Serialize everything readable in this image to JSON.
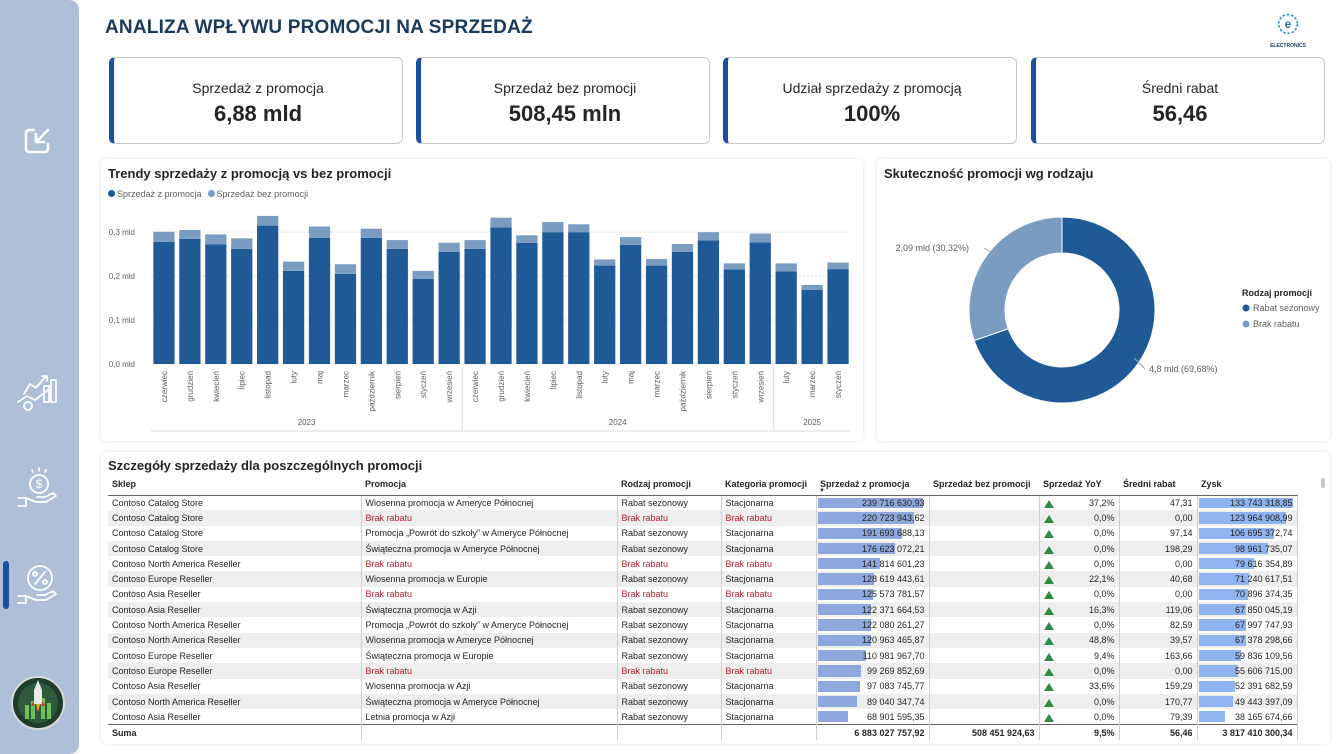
{
  "nav": {
    "items": [
      {
        "name": "export-icon"
      },
      {
        "name": "sales-growth-icon"
      },
      {
        "name": "money-hand-icon"
      },
      {
        "name": "percent-hand-icon"
      }
    ],
    "badge": "rocket-badge-logo"
  },
  "header": {
    "title": "ANALIZA WPŁYWU PROMOCJI NA SPRZEDAŻ",
    "brand": "ELECTRONICS"
  },
  "kpis": [
    {
      "label": "Sprzedaż z promocja",
      "value": "6,88 mld"
    },
    {
      "label": "Sprzedaż bez promocji",
      "value": "508,45 mln"
    },
    {
      "label": "Udział sprzedaży z promocją",
      "value": "100%"
    },
    {
      "label": "Średni rabat",
      "value": "56,46"
    }
  ],
  "colors": {
    "primary": "#1f5a96",
    "secondary": "#7b9cc1",
    "accent": "#1d4fa0"
  },
  "trend": {
    "title": "Trendy sprzedaży z promocją vs bez promocji",
    "legend": [
      "Sprzedaż z promocja",
      "Sprzedaż bez promocji"
    ],
    "yticks": [
      "0,3 mld",
      "0,2 mld",
      "0,1 mld",
      "0,0 mld"
    ]
  },
  "chart_data": [
    {
      "type": "bar",
      "stacked": true,
      "title": "Trendy sprzedaży z promocją vs bez promocji",
      "categories": [
        "czerwiec",
        "grudzień",
        "kwiecień",
        "lipiec",
        "listopad",
        "luty",
        "maj",
        "marzec",
        "październik",
        "sierpień",
        "styczeń",
        "wrzesień",
        "czerwiec",
        "grudzień",
        "kwiecień",
        "lipiec",
        "listopad",
        "luty",
        "maj",
        "marzec",
        "październik",
        "sierpień",
        "styczeń",
        "wrzesień",
        "luty",
        "marzec",
        "styczeń"
      ],
      "groups": [
        {
          "label": "2023",
          "count": 12
        },
        {
          "label": "2024",
          "count": 12
        },
        {
          "label": "2025",
          "count": 3
        }
      ],
      "series": [
        {
          "name": "Sprzedaż z promocja",
          "color": "#1f5a96",
          "values": [
            0.278,
            0.285,
            0.272,
            0.262,
            0.315,
            0.212,
            0.287,
            0.205,
            0.287,
            0.262,
            0.194,
            0.255,
            0.262,
            0.311,
            0.276,
            0.3,
            0.3,
            0.224,
            0.271,
            0.224,
            0.255,
            0.281,
            0.215,
            0.277,
            0.211,
            0.169,
            0.216
          ]
        },
        {
          "name": "Sprzedaż bez promocji",
          "color": "#7b9cc1",
          "values": [
            0.023,
            0.02,
            0.023,
            0.024,
            0.022,
            0.021,
            0.026,
            0.022,
            0.021,
            0.02,
            0.018,
            0.021,
            0.02,
            0.022,
            0.017,
            0.023,
            0.018,
            0.014,
            0.018,
            0.015,
            0.018,
            0.019,
            0.014,
            0.02,
            0.018,
            0.011,
            0.015
          ]
        }
      ],
      "ylim": [
        0,
        0.33
      ],
      "ytick_values": [
        0.3,
        0.2,
        0.1,
        0.0
      ]
    },
    {
      "type": "pie",
      "donut": true,
      "title": "Skuteczność promocji wg rodzaju",
      "legend_title": "Rodzaj promocji",
      "slices": [
        {
          "label": "Rabat sezonowy",
          "value": 4.8,
          "pct": 69.68,
          "color": "#1f5a96",
          "text": "4,8 mld (69,68%)"
        },
        {
          "label": "Brak rabatu",
          "value": 2.09,
          "pct": 30.32,
          "color": "#7b9cc1",
          "text": "2,09 mld (30,32%)"
        }
      ]
    }
  ],
  "donut": {
    "title": "Skuteczność promocji wg rodzaju",
    "legend_title": "Rodzaj promocji",
    "items": [
      "Rabat sezonowy",
      "Brak rabatu"
    ],
    "labels": [
      "4,8 mld (69,68%)",
      "2,09 mld (30,32%)"
    ]
  },
  "table": {
    "title": "Szczegóły sprzedaży dla poszczególnych promocji",
    "columns": [
      "Sklep",
      "Promocja",
      "Rodzaj promocji",
      "Kategoria promocji",
      "Sprzedaż z promocja",
      "Sprzedaż bez promocji",
      "Sprzedaż YoY",
      "Średni rabat",
      "Zysk"
    ],
    "rows": [
      {
        "store": "Contoso Catalog Store",
        "promo": "Wiosenna promocja w Ameryce Północnej",
        "type": "Rabat sezonowy",
        "cat": "Stacjonarna",
        "sales": "239 716 630,93",
        "frac": 1.0,
        "nosales": "",
        "yoy": "37,2%",
        "disc": "47,31",
        "profit": "133 743 318,85",
        "pfrac": 1.0,
        "red": false
      },
      {
        "store": "Contoso Catalog Store",
        "promo": "Brak rabatu",
        "type": "Brak rabatu",
        "cat": "Brak rabatu",
        "sales": "220 723 943,62",
        "frac": 0.921,
        "nosales": "",
        "yoy": "0,0%",
        "disc": "0,00",
        "profit": "123 964 908,99",
        "pfrac": 0.927,
        "red": true
      },
      {
        "store": "Contoso Catalog Store",
        "promo": "Promocja „Powrót do szkoły” w Ameryce Północnej",
        "type": "Rabat sezonowy",
        "cat": "Stacjonarna",
        "sales": "191 693 688,13",
        "frac": 0.8,
        "nosales": "",
        "yoy": "0,0%",
        "disc": "97,14",
        "profit": "106 695 372,74",
        "pfrac": 0.798,
        "red": false
      },
      {
        "store": "Contoso Catalog Store",
        "promo": "Świąteczna promocja w Ameryce Północnej",
        "type": "Rabat sezonowy",
        "cat": "Stacjonarna",
        "sales": "176 623 072,21",
        "frac": 0.737,
        "nosales": "",
        "yoy": "0,0%",
        "disc": "198,29",
        "profit": "98 961 735,07",
        "pfrac": 0.74,
        "red": false
      },
      {
        "store": "Contoso North America Reseller",
        "promo": "Brak rabatu",
        "type": "Brak rabatu",
        "cat": "Brak rabatu",
        "sales": "141 814 601,23",
        "frac": 0.592,
        "nosales": "",
        "yoy": "0,0%",
        "disc": "0,00",
        "profit": "79 616 354,89",
        "pfrac": 0.595,
        "red": true
      },
      {
        "store": "Contoso Europe Reseller",
        "promo": "Wiosenna promocja w Europie",
        "type": "Rabat sezonowy",
        "cat": "Stacjonarna",
        "sales": "128 619 443,61",
        "frac": 0.537,
        "nosales": "",
        "yoy": "22,1%",
        "disc": "40,68",
        "profit": "71 240 617,51",
        "pfrac": 0.533,
        "red": false
      },
      {
        "store": "Contoso Asia Reseller",
        "promo": "Brak rabatu",
        "type": "Brak rabatu",
        "cat": "Brak rabatu",
        "sales": "125 573 781,57",
        "frac": 0.524,
        "nosales": "",
        "yoy": "0,0%",
        "disc": "0,00",
        "profit": "70 896 374,35",
        "pfrac": 0.53,
        "red": true
      },
      {
        "store": "Contoso Asia Reseller",
        "promo": "Świąteczna promocja w Azji",
        "type": "Rabat sezonowy",
        "cat": "Stacjonarna",
        "sales": "122 371 664,53",
        "frac": 0.51,
        "nosales": "",
        "yoy": "16,3%",
        "disc": "119,06",
        "profit": "67 850 045,19",
        "pfrac": 0.507,
        "red": false
      },
      {
        "store": "Contoso North America Reseller",
        "promo": "Promocja „Powrót do szkoły” w Ameryce Północnej",
        "type": "Rabat sezonowy",
        "cat": "Stacjonarna",
        "sales": "122 080 261,27",
        "frac": 0.509,
        "nosales": "",
        "yoy": "0,0%",
        "disc": "82,59",
        "profit": "67 997 747,93",
        "pfrac": 0.508,
        "red": false
      },
      {
        "store": "Contoso North America Reseller",
        "promo": "Wiosenna promocja w Ameryce Północnej",
        "type": "Rabat sezonowy",
        "cat": "Stacjonarna",
        "sales": "120 963 465,87",
        "frac": 0.505,
        "nosales": "",
        "yoy": "48,8%",
        "disc": "39,57",
        "profit": "67 378 298,66",
        "pfrac": 0.504,
        "red": false
      },
      {
        "store": "Contoso Europe Reseller",
        "promo": "Świąteczna promocja w Europie",
        "type": "Rabat sezonowy",
        "cat": "Stacjonarna",
        "sales": "110 981 967,70",
        "frac": 0.463,
        "nosales": "",
        "yoy": "9,4%",
        "disc": "163,66",
        "profit": "59 836 109,56",
        "pfrac": 0.447,
        "red": false
      },
      {
        "store": "Contoso Europe Reseller",
        "promo": "Brak rabatu",
        "type": "Brak rabatu",
        "cat": "Brak rabatu",
        "sales": "99 269 852,69",
        "frac": 0.414,
        "nosales": "",
        "yoy": "0,0%",
        "disc": "0,00",
        "profit": "55 606 715,00",
        "pfrac": 0.416,
        "red": true
      },
      {
        "store": "Contoso Asia Reseller",
        "promo": "Wiosenna promocja w Azji",
        "type": "Rabat sezonowy",
        "cat": "Stacjonarna",
        "sales": "97 083 745,77",
        "frac": 0.405,
        "nosales": "",
        "yoy": "33,6%",
        "disc": "159,29",
        "profit": "52 391 682,59",
        "pfrac": 0.392,
        "red": false
      },
      {
        "store": "Contoso North America Reseller",
        "promo": "Świąteczna promocja w Ameryce Północnej",
        "type": "Rabat sezonowy",
        "cat": "Stacjonarna",
        "sales": "89 040 347,74",
        "frac": 0.371,
        "nosales": "",
        "yoy": "0,0%",
        "disc": "170,77",
        "profit": "49 443 397,09",
        "pfrac": 0.37,
        "red": false
      },
      {
        "store": "Contoso Asia Reseller",
        "promo": "Letnia promocja w Azji",
        "type": "Rabat sezonowy",
        "cat": "Stacjonarna",
        "sales": "68 901 595,35",
        "frac": 0.287,
        "nosales": "",
        "yoy": "0,0%",
        "disc": "79,39",
        "profit": "38 165 674,66",
        "pfrac": 0.285,
        "red": false
      }
    ],
    "total": {
      "label": "Suma",
      "sales": "6 883 027 757,92",
      "nosales": "508 451 924,63",
      "yoy": "9,5%",
      "disc": "56,46",
      "profit": "3 817 410 300,34"
    }
  }
}
